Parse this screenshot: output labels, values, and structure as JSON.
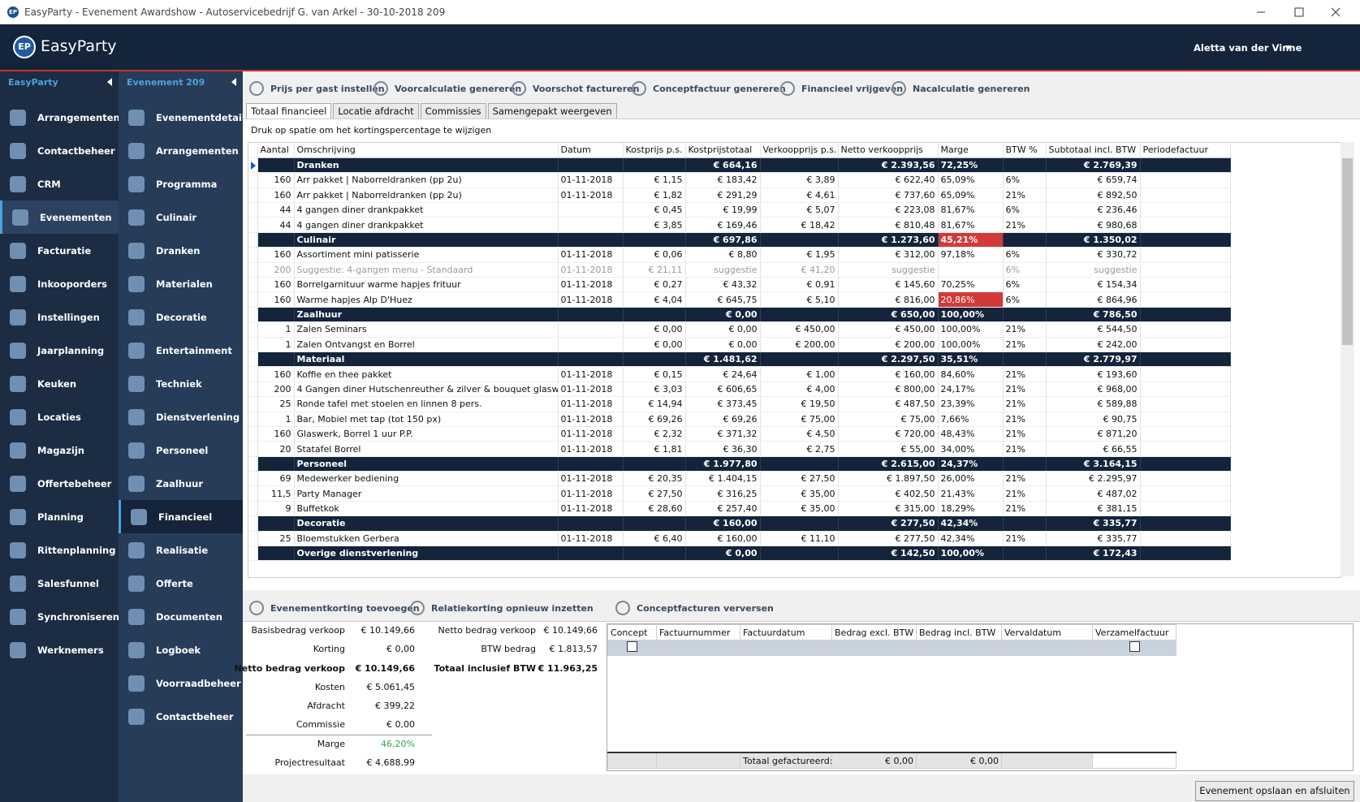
{
  "window": {
    "title": "EasyParty - Evenement Awardshow - Autoservicebedrijf G. van Arkel - 30-10-2018 209",
    "icon": "EP"
  },
  "header": {
    "logo": "EP",
    "brand": "EasyParty",
    "user": "Aletta van der Vinne"
  },
  "nav_main": {
    "title": "EasyParty",
    "selected": 3,
    "items": [
      "Arrangementen",
      "Contactbeheer",
      "CRM",
      "Evenementen",
      "Facturatie",
      "Inkooporders",
      "Instellingen",
      "Jaarplanning",
      "Keuken",
      "Locaties",
      "Magazijn",
      "Offertebeheer",
      "Planning",
      "Rittenplanning",
      "Salesfunnel",
      "Synchroniseren",
      "Werknemers"
    ]
  },
  "nav_event": {
    "title": "Evenement 209",
    "selected": 12,
    "items": [
      "Evenementdetails",
      "Arrangementen",
      "Programma",
      "Culinair",
      "Dranken",
      "Materialen",
      "Decoratie",
      "Entertainment",
      "Techniek",
      "Dienstverlening",
      "Personeel",
      "Zaalhuur",
      "Financieel",
      "Realisatie",
      "Offerte",
      "Documenten",
      "Logboek",
      "Voorraadbeheer",
      "Contactbeheer"
    ]
  },
  "toolbar": [
    "Prijs per gast instellen",
    "Voorcalculatie genereren",
    "Voorschot factureren",
    "Conceptfactuur genereren",
    "Financieel vrijgeven",
    "Nacalculatie genereren"
  ],
  "tabs": {
    "selected": 0,
    "items": [
      "Totaal financieel",
      "Locatie afdracht",
      "Commissies",
      "Samengepakt weergeven"
    ]
  },
  "hint": "Druk op spatie om het kortingspercentage te wijzigen",
  "table": {
    "columns": [
      "Aantal",
      "Omschrijving",
      "Datum",
      "Kostprijs p.s.",
      "Kostprijstotaal",
      "Verkoopprijs p.s.",
      "Netto verkoopprijs",
      "Marge",
      "BTW %",
      "Subtotaal incl. BTW",
      "Periodefactuur"
    ],
    "rows": [
      {
        "style": "group",
        "cells": [
          null,
          "Dranken",
          null,
          null,
          "€ 664,16",
          null,
          "€ 2.393,56",
          "72,25%",
          null,
          "€ 2.769,39",
          null
        ]
      },
      {
        "style": "item",
        "cells": [
          "160",
          "Arr pakket | Naborreldranken (pp 2u)",
          "01-11-2018",
          "€ 1,15",
          "€ 183,42",
          "€ 3,89",
          "€ 622,40",
          "65,09%",
          "6%",
          "€ 659,74",
          null
        ]
      },
      {
        "style": "item",
        "cells": [
          "160",
          "Arr pakket | Naborreldranken (pp 2u)",
          "01-11-2018",
          "€ 1,82",
          "€ 291,29",
          "€ 4,61",
          "€ 737,60",
          "65,09%",
          "21%",
          "€ 892,50",
          null
        ]
      },
      {
        "style": "item",
        "cells": [
          "44",
          "4 gangen diner drankpakket",
          null,
          "€ 0,45",
          "€ 19,99",
          "€ 5,07",
          "€ 223,08",
          "81,67%",
          "6%",
          "€ 236,46",
          null
        ]
      },
      {
        "style": "item",
        "cells": [
          "44",
          "4 gangen diner drankpakket",
          null,
          "€ 3,85",
          "€ 169,46",
          "€ 18,42",
          "€ 810,48",
          "81,67%",
          "21%",
          "€ 980,68",
          null
        ]
      },
      {
        "style": "group",
        "alert_column": 7,
        "cells": [
          null,
          "Culinair",
          null,
          null,
          "€ 697,86",
          null,
          "€ 1.273,60",
          "45,21%",
          null,
          "€ 1.350,02",
          null
        ]
      },
      {
        "style": "item",
        "cells": [
          "160",
          "Assortiment mini patisserie",
          "01-11-2018",
          "€ 0,06",
          "€ 8,80",
          "€ 1,95",
          "€ 312,00",
          "97,18%",
          "6%",
          "€ 330,72",
          null
        ]
      },
      {
        "style": "suggestion",
        "cells": [
          "200",
          "Suggestie: 4-gangen menu - Standaard",
          "01-11-2018",
          "€ 21,11",
          "suggestie",
          "€ 41,20",
          "suggestie",
          null,
          "6%",
          "suggestie",
          null
        ]
      },
      {
        "style": "item",
        "cells": [
          "160",
          "Borrelgarnituur warme hapjes frituur",
          "01-11-2018",
          "€ 0,27",
          "€ 43,32",
          "€ 0,91",
          "€ 145,60",
          "70,25%",
          "6%",
          "€ 154,34",
          null
        ]
      },
      {
        "style": "item",
        "alert_column": 7,
        "cells": [
          "160",
          "Warme hapjes Alp D'Huez",
          "01-11-2018",
          "€ 4,04",
          "€ 645,75",
          "€ 5,10",
          "€ 816,00",
          "20,86%",
          "6%",
          "€ 864,96",
          null
        ]
      },
      {
        "style": "group",
        "cells": [
          null,
          "Zaalhuur",
          null,
          null,
          "€ 0,00",
          null,
          "€ 650,00",
          "100,00%",
          null,
          "€ 786,50",
          null
        ]
      },
      {
        "style": "item",
        "cells": [
          "1",
          "Zalen Seminars",
          null,
          "€ 0,00",
          "€ 0,00",
          "€ 450,00",
          "€ 450,00",
          "100,00%",
          "21%",
          "€ 544,50",
          null
        ]
      },
      {
        "style": "item",
        "cells": [
          "1",
          "Zalen Ontvangst en Borrel",
          null,
          "€ 0,00",
          "€ 0,00",
          "€ 200,00",
          "€ 200,00",
          "100,00%",
          "21%",
          "€ 242,00",
          null
        ]
      },
      {
        "style": "group",
        "cells": [
          null,
          "Materiaal",
          null,
          null,
          "€ 1.481,62",
          null,
          "€ 2.297,50",
          "35,51%",
          null,
          "€ 2.779,97",
          null
        ]
      },
      {
        "style": "item",
        "cells": [
          "160",
          "Koffie en thee pakket",
          "01-11-2018",
          "€ 0,15",
          "€ 24,64",
          "€ 1,00",
          "€ 160,00",
          "84,60%",
          "21%",
          "€ 193,60",
          null
        ]
      },
      {
        "style": "item",
        "cells": [
          "200",
          "4 Gangen diner Hutschenreuther & zilver & bouquet glasw.",
          "01-11-2018",
          "€ 3,03",
          "€ 606,65",
          "€ 4,00",
          "€ 800,00",
          "24,17%",
          "21%",
          "€ 968,00",
          null
        ]
      },
      {
        "style": "item",
        "cells": [
          "25",
          "Ronde tafel met stoelen en linnen 8 pers.",
          "01-11-2018",
          "€ 14,94",
          "€ 373,45",
          "€ 19,50",
          "€ 487,50",
          "23,39%",
          "21%",
          "€ 589,88",
          null
        ]
      },
      {
        "style": "item",
        "cells": [
          "1",
          "Bar, Mobiel met tap (tot 150 px)",
          "01-11-2018",
          "€ 69,26",
          "€ 69,26",
          "€ 75,00",
          "€ 75,00",
          "7,66%",
          "21%",
          "€ 90,75",
          null
        ]
      },
      {
        "style": "item",
        "cells": [
          "160",
          "Glaswerk, Borrel 1 uur P.P.",
          "01-11-2018",
          "€ 2,32",
          "€ 371,32",
          "€ 4,50",
          "€ 720,00",
          "48,43%",
          "21%",
          "€ 871,20",
          null
        ]
      },
      {
        "style": "item",
        "cells": [
          "20",
          "Statafel Borrel",
          "01-11-2018",
          "€ 1,81",
          "€ 36,30",
          "€ 2,75",
          "€ 55,00",
          "34,00%",
          "21%",
          "€ 66,55",
          null
        ]
      },
      {
        "style": "group",
        "cells": [
          null,
          "Personeel",
          null,
          null,
          "€ 1.977,80",
          null,
          "€ 2.615,00",
          "24,37%",
          null,
          "€ 3.164,15",
          null
        ]
      },
      {
        "style": "item",
        "cells": [
          "69",
          "Medewerker bediening",
          "01-11-2018",
          "€ 20,35",
          "€ 1.404,15",
          "€ 27,50",
          "€ 1.897,50",
          "26,00%",
          "21%",
          "€ 2.295,97",
          null
        ]
      },
      {
        "style": "item",
        "cells": [
          "11,5",
          "Party Manager",
          "01-11-2018",
          "€ 27,50",
          "€ 316,25",
          "€ 35,00",
          "€ 402,50",
          "21,43%",
          "21%",
          "€ 487,02",
          null
        ]
      },
      {
        "style": "item",
        "cells": [
          "9",
          "Buffetkok",
          "01-11-2018",
          "€ 28,60",
          "€ 257,40",
          "€ 35,00",
          "€ 315,00",
          "18,29%",
          "21%",
          "€ 381,15",
          null
        ]
      },
      {
        "style": "group",
        "cells": [
          null,
          "Decoratie",
          null,
          null,
          "€ 160,00",
          null,
          "€ 277,50",
          "42,34%",
          null,
          "€ 335,77",
          null
        ]
      },
      {
        "style": "item",
        "cells": [
          "25",
          "Bloemstukken Gerbera",
          "01-11-2018",
          "€ 6,40",
          "€ 160,00",
          "€ 11,10",
          "€ 277,50",
          "42,34%",
          "21%",
          "€ 335,77",
          null
        ]
      },
      {
        "style": "group",
        "cells": [
          null,
          "Overige dienstverlening",
          null,
          null,
          "€ 0,00",
          null,
          "€ 142,50",
          "100,00%",
          null,
          "€ 172,43",
          null
        ]
      }
    ]
  },
  "bottom_toolbar": [
    "Evenementkorting toevoegen",
    "Relatiekorting opnieuw inzetten",
    "Conceptfacturen verversen"
  ],
  "summary": [
    {
      "label": "Basisbedrag verkoop",
      "value": "€ 10.149,66"
    },
    {
      "label": "Korting",
      "value": "€ 0,00"
    },
    {
      "label": "Netto bedrag verkoop",
      "value": "€ 10.149,66",
      "bold": true
    },
    {
      "label": "Kosten",
      "value": "€ 5.061,45"
    },
    {
      "label": "Afdracht",
      "value": "€ 399,22"
    },
    {
      "label": "Commissie",
      "value": "€ 0,00"
    },
    {
      "label": "Marge",
      "value": "46,20%",
      "color": "#2ea84a"
    },
    {
      "label": "Projectresultaat",
      "value": "€ 4.688,99"
    }
  ],
  "totals": [
    {
      "label": "Netto bedrag verkoop",
      "value": "€ 10.149,66"
    },
    {
      "label": "BTW bedrag",
      "value": "€ 1.813,57"
    },
    {
      "label": "Totaal inclusief BTW",
      "value": "€ 11.963,25",
      "bold": true
    }
  ],
  "invoices": {
    "columns": [
      "Concept",
      "Factuurnummer",
      "Factuurdatum",
      "Bedrag excl. BTW",
      "Bedrag incl. BTW",
      "Vervaldatum",
      "Verzamelfactuur"
    ],
    "total_label": "Totaal gefactureerd:",
    "total_excl": "€ 0,00",
    "total_incl": "€ 0,00"
  },
  "button": "Evenement opslaan en afsluiten"
}
